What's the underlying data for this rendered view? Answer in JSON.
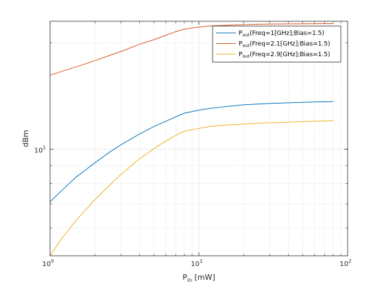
{
  "chart_data": {
    "type": "line",
    "title": "",
    "xlabel": {
      "main": "P",
      "sub": "in",
      "rest": " [mW]"
    },
    "ylabel": "dBm",
    "x_scale": "log",
    "y_scale": "log",
    "xlim": [
      1,
      100
    ],
    "ylim": [
      5.0,
      23.0
    ],
    "grid": true,
    "minor_grid": true,
    "legend_position": "top-right",
    "x_ticks": [
      {
        "value": 1,
        "base": "10",
        "exp": "0"
      },
      {
        "value": 10,
        "base": "10",
        "exp": "1"
      },
      {
        "value": 100,
        "base": "10",
        "exp": "2"
      }
    ],
    "y_ticks": [
      {
        "value": 10,
        "base": "10",
        "exp": "1"
      }
    ],
    "x": [
      1,
      1.2,
      1.5,
      2,
      2.5,
      3,
      4,
      5,
      6,
      7,
      8,
      10,
      12,
      15,
      20,
      25,
      30,
      40,
      50,
      60,
      70,
      80
    ],
    "series": [
      {
        "name_main": "P",
        "name_sub": "out",
        "name_rest": "(Freq=1[GHz];Bias=1.5)",
        "color": "#0072bd",
        "values": [
          7.1,
          7.65,
          8.35,
          9.15,
          9.8,
          10.3,
          11.05,
          11.6,
          12.0,
          12.35,
          12.65,
          12.9,
          13.05,
          13.2,
          13.35,
          13.42,
          13.47,
          13.53,
          13.57,
          13.6,
          13.62,
          13.63
        ]
      },
      {
        "name_main": "P",
        "name_sub": "out",
        "name_rest": "(Freq=2.1[GHz];Bias=1.5)",
        "color": "#d95319",
        "values": [
          16.2,
          16.6,
          17.1,
          17.8,
          18.4,
          18.9,
          19.8,
          20.4,
          21.0,
          21.5,
          21.85,
          22.15,
          22.3,
          22.4,
          22.5,
          22.55,
          22.58,
          22.6,
          22.62,
          22.63,
          22.64,
          22.65
        ]
      },
      {
        "name_main": "P",
        "name_sub": "out",
        "name_rest": "(Freq=2.9[GHz];Bias=1.5)",
        "color": "#edb120",
        "values": [
          5.0,
          5.6,
          6.3,
          7.2,
          7.9,
          8.5,
          9.4,
          10.05,
          10.55,
          10.95,
          11.25,
          11.45,
          11.6,
          11.7,
          11.78,
          11.84,
          11.88,
          11.93,
          11.97,
          12.0,
          12.02,
          12.04
        ]
      }
    ]
  }
}
